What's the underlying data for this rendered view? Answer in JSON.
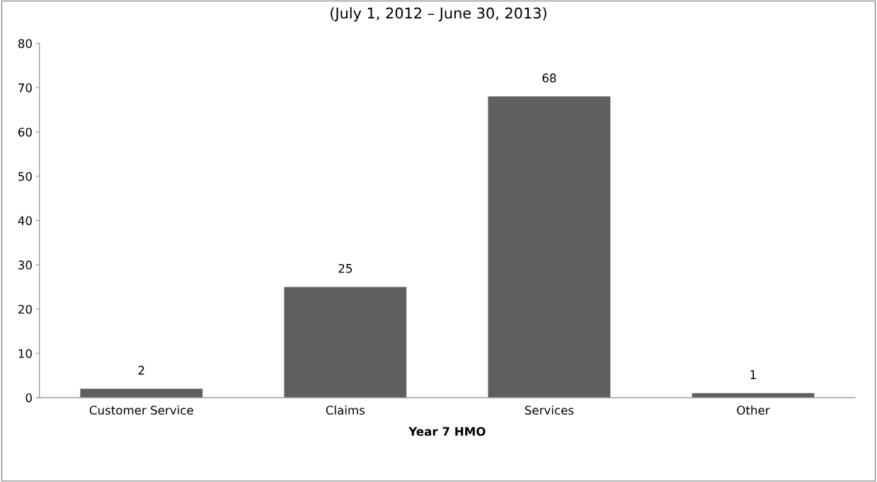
{
  "chart_data": {
    "type": "bar",
    "subtitle": "(July 1, 2012 – June 30, 2013)",
    "xlabel": "Year 7 HMO",
    "categories": [
      "Customer Service",
      "Claims",
      "Services",
      "Other"
    ],
    "values": [
      2,
      25,
      68,
      1
    ],
    "color": "#5f5f5f",
    "ylim": [
      0,
      80
    ],
    "yticks": [
      0,
      10,
      20,
      30,
      40,
      50,
      60,
      70,
      80
    ],
    "data_labels": true,
    "grid": false,
    "legend": false
  }
}
